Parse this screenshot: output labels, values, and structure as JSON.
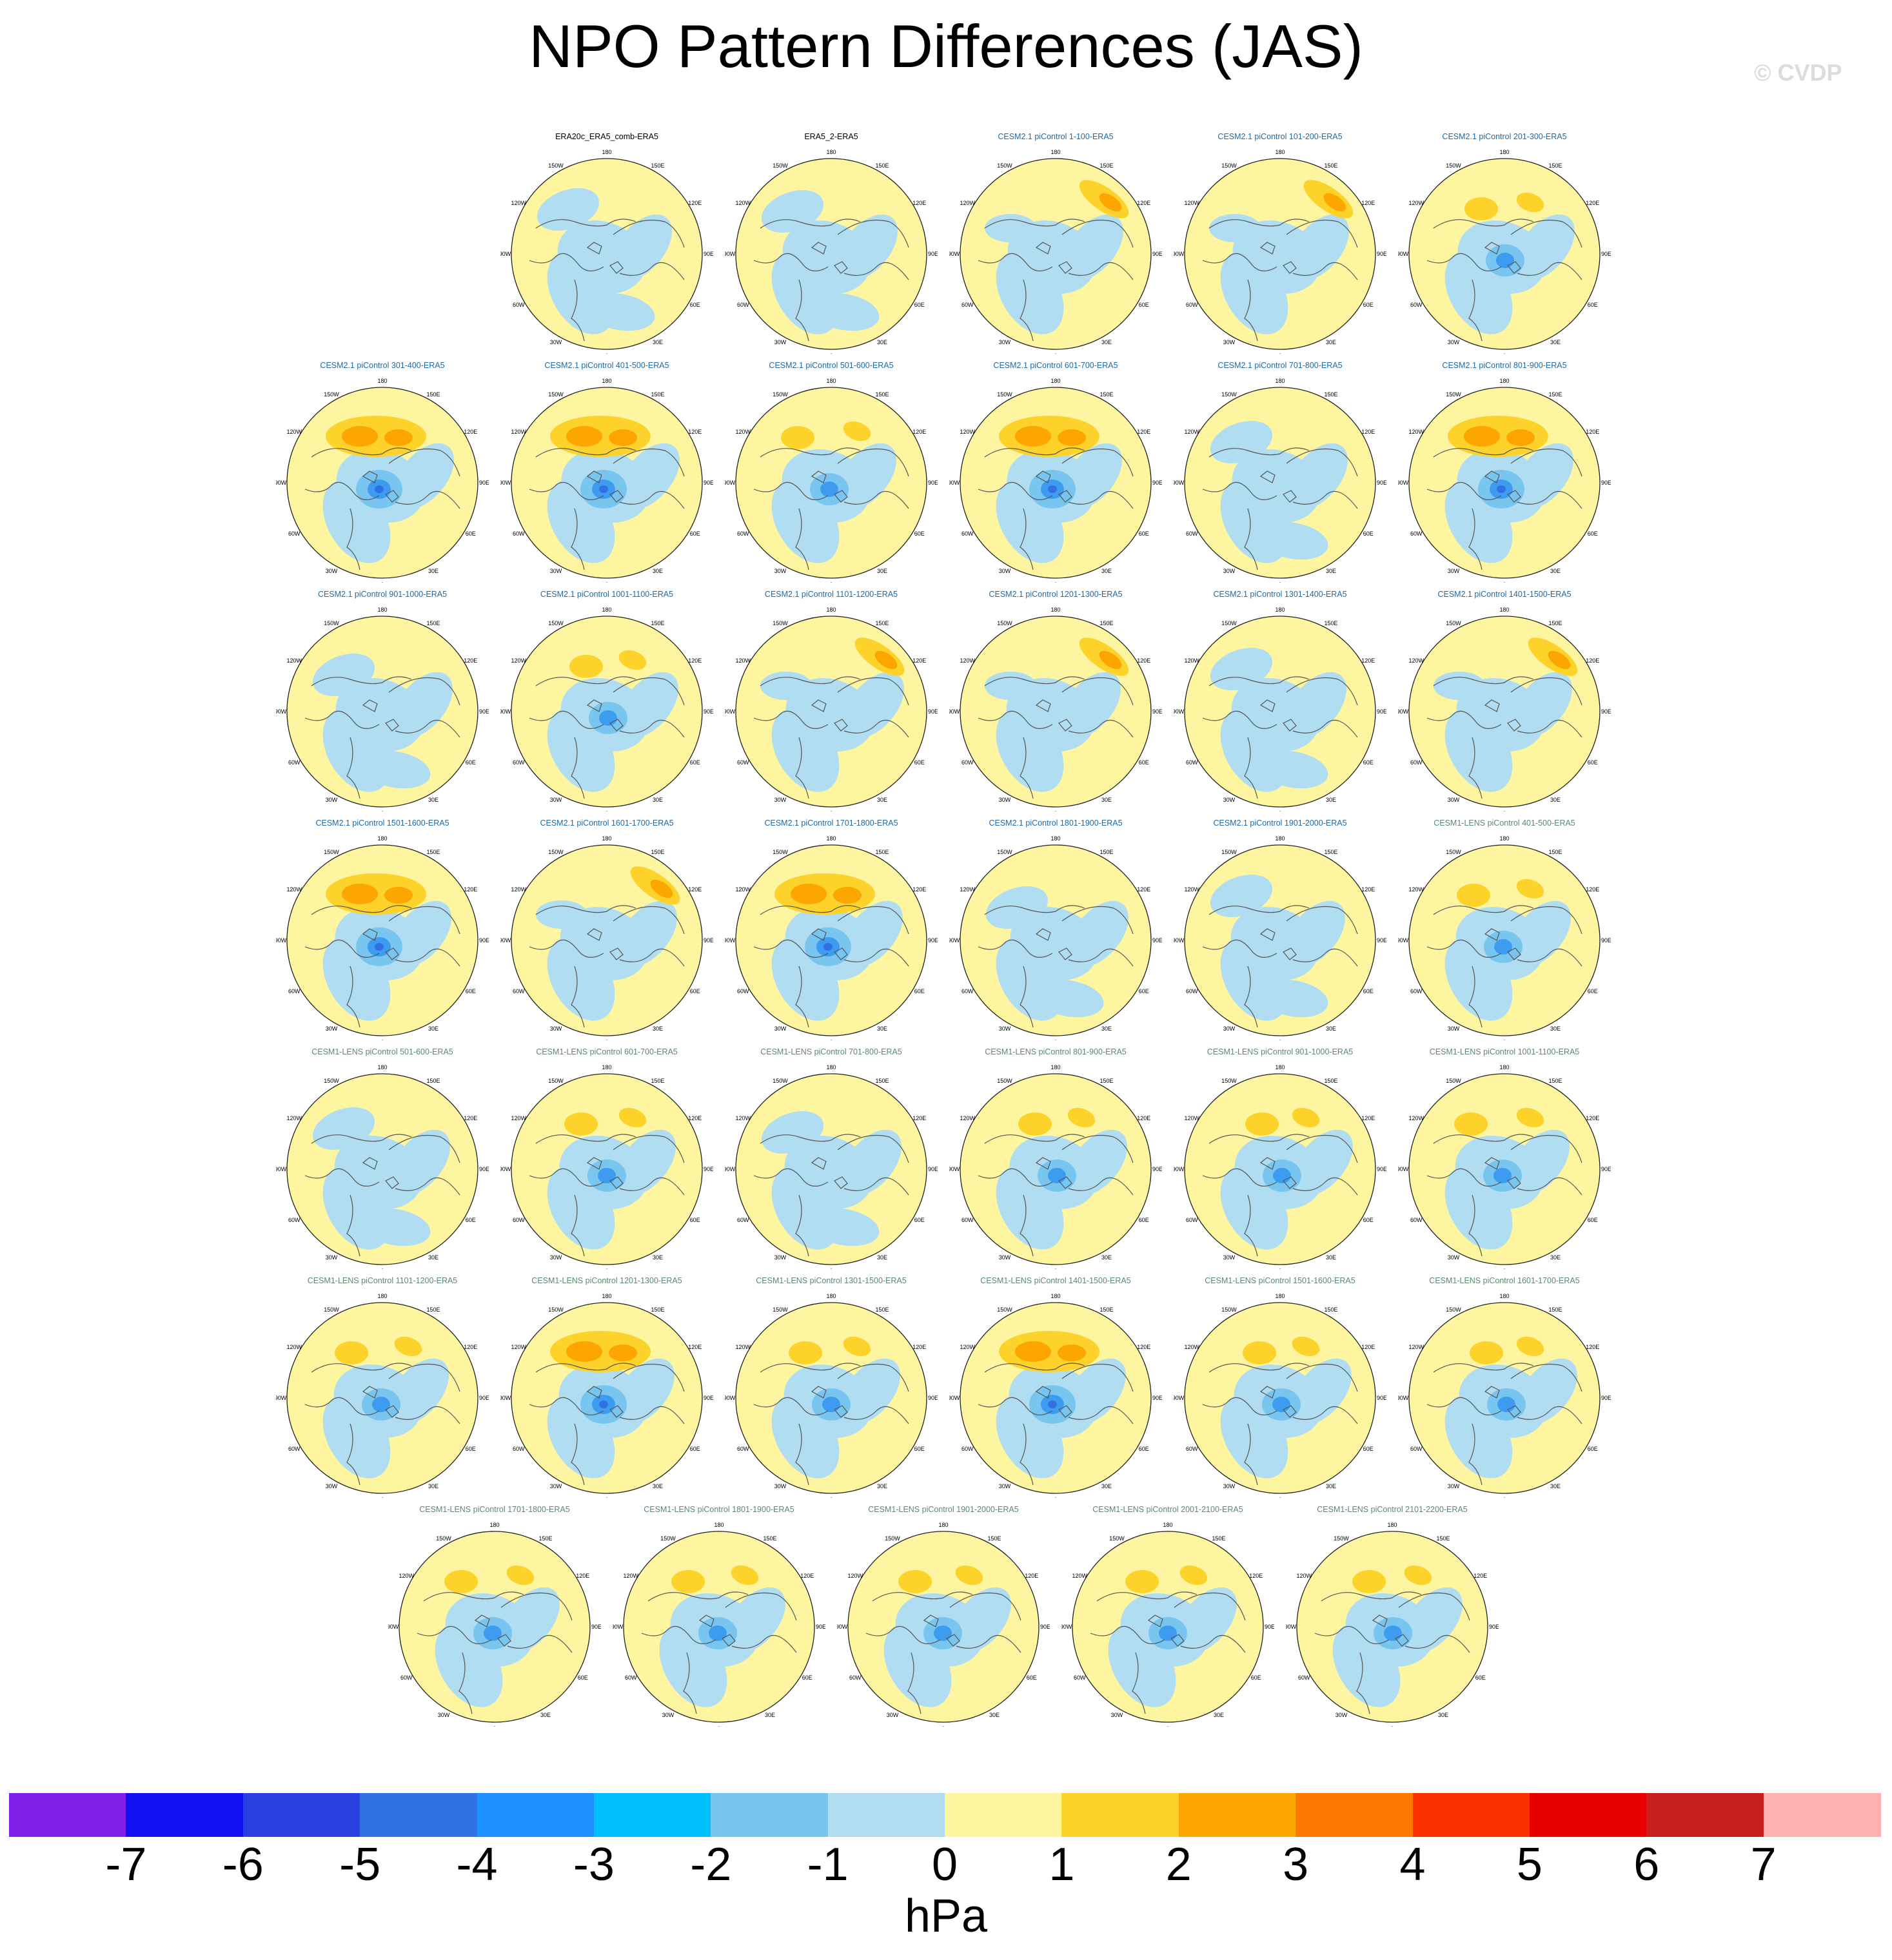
{
  "title": "NPO Pattern Differences (JAS)",
  "copyright": "© CVDP",
  "units": "hPa",
  "colorbar": {
    "labels": [
      "-7",
      "-6",
      "-5",
      "-4",
      "-3",
      "-2",
      "-1",
      "0",
      "1",
      "2",
      "3",
      "4",
      "5",
      "6",
      "7"
    ],
    "colors": [
      "#8020e8",
      "#1010f0",
      "#2a40e0",
      "#3070e0",
      "#1e90ff",
      "#00bfff",
      "#78c6f0",
      "#b0ddf2",
      "#fdf5a0",
      "#fdd22a",
      "#fda500",
      "#fd7800",
      "#fd3000",
      "#e80000",
      "#c81e1e",
      "#ffb0b0"
    ]
  },
  "map_labels": {
    "lon_180": "180",
    "lon_150w": "150W",
    "lon_150e": "150E",
    "lon_120w": "120W",
    "lon_120e": "120E",
    "lon_90w": "90W",
    "lon_90e": "90E",
    "lon_60w": "60W",
    "lon_60e": "60E",
    "lon_30w": "30W",
    "lon_30e": "30E",
    "lon_0": "0"
  },
  "rows": [
    {
      "row": 1,
      "panels": [
        {
          "title": "ERA20c_ERA5_comb-ERA5",
          "color": "black",
          "pattern": "light"
        },
        {
          "title": "ERA5_2-ERA5",
          "color": "black",
          "pattern": "light"
        },
        {
          "title": "CESM2.1 piControl 1-100-ERA5",
          "color": "blue",
          "pattern": "ne_orange"
        },
        {
          "title": "CESM2.1 piControl 101-200-ERA5",
          "color": "blue",
          "pattern": "ne_orange"
        },
        {
          "title": "CESM2.1 piControl 201-300-ERA5",
          "color": "blue",
          "pattern": "orange_blue"
        }
      ]
    },
    {
      "row": 2,
      "panels": [
        {
          "title": "CESM2.1 piControl 301-400-ERA5",
          "color": "blue",
          "pattern": "strong"
        },
        {
          "title": "CESM2.1 piControl 401-500-ERA5",
          "color": "blue",
          "pattern": "strong"
        },
        {
          "title": "CESM2.1 piControl 501-600-ERA5",
          "color": "blue",
          "pattern": "orange_blue"
        },
        {
          "title": "CESM2.1 piControl 601-700-ERA5",
          "color": "blue",
          "pattern": "strong"
        },
        {
          "title": "CESM2.1 piControl 701-800-ERA5",
          "color": "blue",
          "pattern": "light"
        },
        {
          "title": "CESM2.1 piControl 801-900-ERA5",
          "color": "blue",
          "pattern": "strong"
        }
      ]
    },
    {
      "row": 3,
      "panels": [
        {
          "title": "CESM2.1 piControl 901-1000-ERA5",
          "color": "blue",
          "pattern": "light"
        },
        {
          "title": "CESM2.1 piControl 1001-1100-ERA5",
          "color": "blue",
          "pattern": "orange_blue"
        },
        {
          "title": "CESM2.1 piControl 1101-1200-ERA5",
          "color": "blue",
          "pattern": "ne_orange"
        },
        {
          "title": "CESM2.1 piControl 1201-1300-ERA5",
          "color": "blue",
          "pattern": "ne_orange"
        },
        {
          "title": "CESM2.1 piControl 1301-1400-ERA5",
          "color": "blue",
          "pattern": "light"
        },
        {
          "title": "CESM2.1 piControl 1401-1500-ERA5",
          "color": "blue",
          "pattern": "ne_orange"
        }
      ]
    },
    {
      "row": 4,
      "panels": [
        {
          "title": "CESM2.1 piControl 1501-1600-ERA5",
          "color": "blue",
          "pattern": "strong"
        },
        {
          "title": "CESM2.1 piControl 1601-1700-ERA5",
          "color": "blue",
          "pattern": "ne_orange"
        },
        {
          "title": "CESM2.1 piControl 1701-1800-ERA5",
          "color": "blue",
          "pattern": "strong"
        },
        {
          "title": "CESM2.1 piControl 1801-1900-ERA5",
          "color": "blue",
          "pattern": "light"
        },
        {
          "title": "CESM2.1 piControl 1901-2000-ERA5",
          "color": "blue",
          "pattern": "light"
        },
        {
          "title": "CESM1-LENS piControl 401-500-ERA5",
          "color": "green",
          "pattern": "orange_blue"
        }
      ]
    },
    {
      "row": 5,
      "panels": [
        {
          "title": "CESM1-LENS piControl 501-600-ERA5",
          "color": "green",
          "pattern": "light"
        },
        {
          "title": "CESM1-LENS piControl 601-700-ERA5",
          "color": "green",
          "pattern": "orange_blue"
        },
        {
          "title": "CESM1-LENS piControl 701-800-ERA5",
          "color": "green",
          "pattern": "light"
        },
        {
          "title": "CESM1-LENS piControl 801-900-ERA5",
          "color": "green",
          "pattern": "orange_blue"
        },
        {
          "title": "CESM1-LENS piControl 901-1000-ERA5",
          "color": "green",
          "pattern": "orange_blue"
        },
        {
          "title": "CESM1-LENS piControl 1001-1100-ERA5",
          "color": "green",
          "pattern": "orange_blue"
        }
      ]
    },
    {
      "row": 6,
      "panels": [
        {
          "title": "CESM1-LENS piControl 1101-1200-ERA5",
          "color": "green",
          "pattern": "orange_blue"
        },
        {
          "title": "CESM1-LENS piControl 1201-1300-ERA5",
          "color": "green",
          "pattern": "strong"
        },
        {
          "title": "CESM1-LENS piControl 1301-1500-ERA5",
          "color": "green",
          "pattern": "orange_blue"
        },
        {
          "title": "CESM1-LENS piControl 1401-1500-ERA5",
          "color": "green",
          "pattern": "strong"
        },
        {
          "title": "CESM1-LENS piControl 1501-1600-ERA5",
          "color": "green",
          "pattern": "orange_blue"
        },
        {
          "title": "CESM1-LENS piControl 1601-1700-ERA5",
          "color": "green",
          "pattern": "orange_blue"
        }
      ]
    },
    {
      "row": 7,
      "panels": [
        {
          "title": "CESM1-LENS piControl 1701-1800-ERA5",
          "color": "green",
          "pattern": "orange_blue"
        },
        {
          "title": "CESM1-LENS piControl 1801-1900-ERA5",
          "color": "green",
          "pattern": "orange_blue"
        },
        {
          "title": "CESM1-LENS piControl 1901-2000-ERA5",
          "color": "green",
          "pattern": "orange_blue"
        },
        {
          "title": "CESM1-LENS piControl 2001-2100-ERA5",
          "color": "green",
          "pattern": "orange_blue"
        },
        {
          "title": "CESM1-LENS piControl 2101-2200-ERA5",
          "color": "green",
          "pattern": "orange_blue"
        }
      ]
    }
  ]
}
